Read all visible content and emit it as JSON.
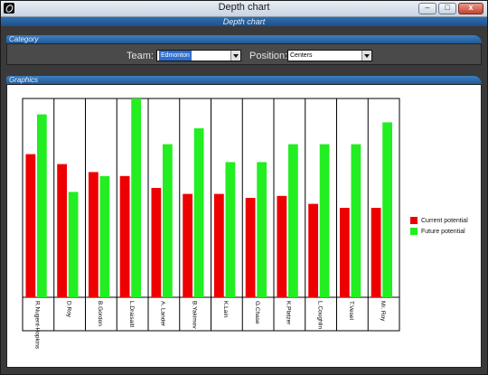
{
  "window": {
    "title": "Depth chart",
    "subtitle": "Depth chart"
  },
  "window_buttons": {
    "minimize": "–",
    "maximize": "□",
    "close": "x"
  },
  "category": {
    "section_label": "Category",
    "team_label": "Team:",
    "team_value": "Edmonton",
    "position_label": "Position:",
    "position_value": "Centers"
  },
  "graphics": {
    "section_label": "Graphics"
  },
  "colors": {
    "current": "#ee0000",
    "future": "#22ee22"
  },
  "chart_data": {
    "type": "bar",
    "categories": [
      "R.Nugent-Hopkins",
      "D.Roy",
      "B.Gordon",
      "L.Draisaitl",
      "A. Lander",
      "B.Yakimov",
      "K.Lain",
      "G.Chase",
      "K.Platzer",
      "L.Coughlin",
      "T.Vesel",
      "Mr. Roy"
    ],
    "series": [
      {
        "name": "Current potential",
        "values": [
          72,
          67,
          63,
          61,
          55,
          52,
          52,
          50,
          51,
          47,
          45,
          45
        ]
      },
      {
        "name": "Future potential",
        "values": [
          92,
          53,
          61,
          100,
          77,
          85,
          68,
          68,
          77,
          77,
          77,
          88
        ]
      }
    ],
    "ylim": [
      0,
      100
    ],
    "legend_position": "right"
  }
}
